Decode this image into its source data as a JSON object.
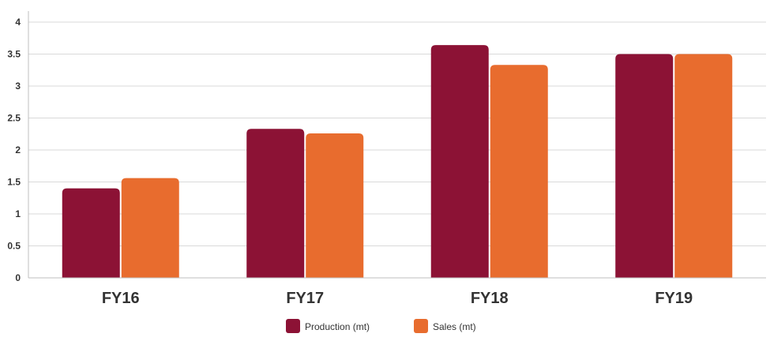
{
  "chart_data": {
    "type": "bar",
    "categories": [
      "FY16",
      "FY17",
      "FY18",
      "FY19"
    ],
    "series": [
      {
        "name": "Production (mt)",
        "color": "#8c1235",
        "values": [
          1.4,
          2.33,
          3.64,
          3.5
        ]
      },
      {
        "name": "Sales (mt)",
        "color": "#e86c2e",
        "values": [
          1.56,
          2.26,
          3.33,
          3.5
        ]
      }
    ],
    "yticks": [
      "0",
      "0.5",
      "1",
      "1.5",
      "2",
      "2.5",
      "3",
      "3.5",
      "4"
    ],
    "ylim": [
      0,
      4
    ],
    "grid": true,
    "legend_position": "bottom-center"
  }
}
